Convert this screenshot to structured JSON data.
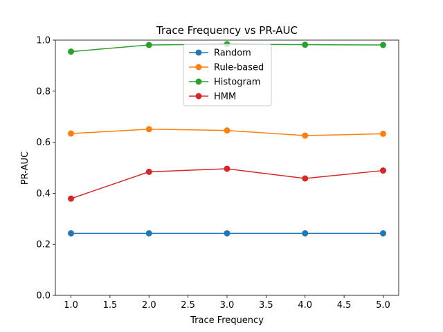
{
  "chart_data": {
    "type": "line",
    "title": "Trace Frequency vs PR-AUC",
    "xlabel": "Trace Frequency",
    "ylabel": "PR-AUC",
    "x": [
      1.0,
      2.0,
      3.0,
      4.0,
      5.0
    ],
    "xlim": [
      0.8,
      5.2
    ],
    "ylim": [
      0.0,
      1.0
    ],
    "xticks": [
      "1.0",
      "1.5",
      "2.0",
      "2.5",
      "3.0",
      "3.5",
      "4.0",
      "4.5",
      "5.0"
    ],
    "yticks": [
      "0.0",
      "0.2",
      "0.4",
      "0.6",
      "0.8",
      "1.0"
    ],
    "grid": false,
    "legend_position": "top-center",
    "series": [
      {
        "name": "Random",
        "color": "#1f77b4",
        "values": [
          0.243,
          0.243,
          0.243,
          0.243,
          0.243
        ]
      },
      {
        "name": "Rule-based",
        "color": "#ff7f0e",
        "values": [
          0.634,
          0.651,
          0.646,
          0.626,
          0.633
        ]
      },
      {
        "name": "Histogram",
        "color": "#2ca02c",
        "values": [
          0.955,
          0.981,
          0.984,
          0.982,
          0.981
        ]
      },
      {
        "name": "HMM",
        "color": "#d62728",
        "values": [
          0.379,
          0.484,
          0.496,
          0.458,
          0.489
        ]
      }
    ]
  }
}
